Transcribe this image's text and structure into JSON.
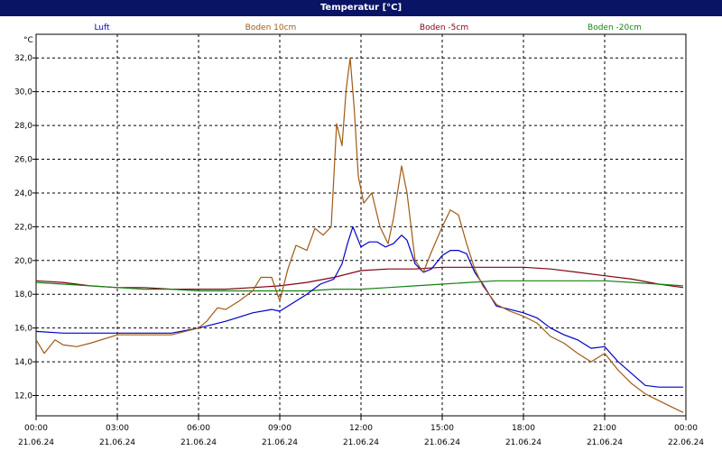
{
  "window": {
    "title": "Temperatur [°C]"
  },
  "chart_data": {
    "type": "line",
    "title": "Temperatur [°C]",
    "ylabel": "°C",
    "ylim": [
      10.8,
      33.4
    ],
    "y_ticks": [
      "12,0",
      "14,0",
      "16,0",
      "18,0",
      "20,0",
      "22,0",
      "24,0",
      "26,0",
      "28,0",
      "30,0",
      "32,0"
    ],
    "y_tick_values": [
      12,
      14,
      16,
      18,
      20,
      22,
      24,
      26,
      28,
      30,
      32
    ],
    "xlim": [
      0,
      24
    ],
    "x_ticks": [
      {
        "h": 0,
        "time": "00:00",
        "date": "21.06.24"
      },
      {
        "h": 3,
        "time": "03:00",
        "date": "21.06.24"
      },
      {
        "h": 6,
        "time": "06:00",
        "date": "21.06.24"
      },
      {
        "h": 9,
        "time": "09:00",
        "date": "21.06.24"
      },
      {
        "h": 12,
        "time": "12:00",
        "date": "21.06.24"
      },
      {
        "h": 15,
        "time": "15:00",
        "date": "21.06.24"
      },
      {
        "h": 18,
        "time": "18:00",
        "date": "21.06.24"
      },
      {
        "h": 21,
        "time": "21:00",
        "date": "21.06.24"
      },
      {
        "h": 24,
        "time": "00:00",
        "date": "22.06.24"
      }
    ],
    "grid": true,
    "legend_position": "top",
    "series": [
      {
        "name": "Luft",
        "color": "#0000c8",
        "x": [
          0,
          1,
          2,
          3,
          4,
          5,
          6,
          7,
          8,
          8.7,
          9,
          9.5,
          10,
          10.5,
          11,
          11.3,
          11.5,
          11.7,
          12,
          12.3,
          12.6,
          12.9,
          13.2,
          13.5,
          13.7,
          14,
          14.3,
          14.6,
          15,
          15.3,
          15.6,
          15.9,
          16.2,
          16.5,
          17,
          17.5,
          18,
          18.5,
          19,
          19.5,
          20,
          20.5,
          21,
          21.5,
          22,
          22.5,
          23,
          23.5,
          23.9
        ],
        "y": [
          15.8,
          15.7,
          15.7,
          15.7,
          15.7,
          15.7,
          16.0,
          16.4,
          16.9,
          17.1,
          17.0,
          17.5,
          18.0,
          18.6,
          18.9,
          19.8,
          21.0,
          22.0,
          20.8,
          21.1,
          21.1,
          20.8,
          21.0,
          21.5,
          21.2,
          19.8,
          19.3,
          19.5,
          20.3,
          20.6,
          20.6,
          20.4,
          19.3,
          18.6,
          17.3,
          17.1,
          16.9,
          16.6,
          16.0,
          15.6,
          15.3,
          14.8,
          14.9,
          14.0,
          13.3,
          12.6,
          12.5,
          12.5,
          12.5
        ]
      },
      {
        "name": "Boden 10cm",
        "color": "#a05a14",
        "x": [
          0,
          0.3,
          0.7,
          1,
          1.5,
          2,
          3,
          4,
          5,
          6,
          6.3,
          6.7,
          7,
          7.5,
          8,
          8.3,
          8.7,
          9,
          9.3,
          9.6,
          10,
          10.3,
          10.6,
          10.9,
          11.1,
          11.3,
          11.45,
          11.6,
          11.75,
          11.9,
          12.1,
          12.4,
          12.7,
          13,
          13.2,
          13.5,
          13.7,
          14,
          14.3,
          14.6,
          15,
          15.3,
          15.6,
          15.9,
          16.2,
          16.5,
          17,
          17.5,
          18,
          18.5,
          19,
          19.5,
          20,
          20.5,
          21,
          21.5,
          22,
          22.5,
          23,
          23.5,
          23.9
        ],
        "y": [
          15.3,
          14.5,
          15.3,
          15.0,
          14.9,
          15.1,
          15.6,
          15.6,
          15.6,
          16.0,
          16.4,
          17.2,
          17.1,
          17.6,
          18.2,
          19.0,
          19.0,
          17.6,
          19.5,
          20.9,
          20.6,
          21.9,
          21.5,
          22.0,
          28.1,
          26.8,
          30.1,
          32.0,
          29.0,
          25.0,
          23.4,
          24.0,
          22.0,
          21.0,
          22.5,
          25.6,
          24.0,
          20.0,
          19.3,
          20.5,
          22.0,
          23.0,
          22.7,
          21.0,
          19.5,
          18.5,
          17.4,
          17.0,
          16.7,
          16.3,
          15.5,
          15.1,
          14.5,
          14.0,
          14.5,
          13.5,
          12.7,
          12.1,
          11.7,
          11.3,
          11.0
        ]
      },
      {
        "name": "Boden -5cm",
        "color": "#820014",
        "x": [
          0,
          1,
          2,
          3,
          4,
          5,
          6,
          7,
          8,
          9,
          10,
          11,
          12,
          13,
          14,
          15,
          16,
          17,
          18,
          19,
          20,
          21,
          22,
          23,
          23.9
        ],
        "y": [
          18.8,
          18.7,
          18.5,
          18.4,
          18.4,
          18.3,
          18.3,
          18.3,
          18.4,
          18.5,
          18.7,
          19.0,
          19.4,
          19.5,
          19.5,
          19.6,
          19.6,
          19.6,
          19.6,
          19.5,
          19.3,
          19.1,
          18.9,
          18.6,
          18.4
        ]
      },
      {
        "name": "Boden -20cm",
        "color": "#148214",
        "x": [
          0,
          1,
          2,
          3,
          4,
          5,
          6,
          7,
          8,
          9,
          10,
          11,
          12,
          13,
          14,
          15,
          16,
          17,
          18,
          19,
          20,
          21,
          22,
          23,
          23.9
        ],
        "y": [
          18.7,
          18.6,
          18.5,
          18.4,
          18.3,
          18.3,
          18.2,
          18.2,
          18.2,
          18.2,
          18.2,
          18.3,
          18.3,
          18.4,
          18.5,
          18.6,
          18.7,
          18.8,
          18.8,
          18.8,
          18.8,
          18.8,
          18.7,
          18.6,
          18.5
        ]
      }
    ]
  }
}
